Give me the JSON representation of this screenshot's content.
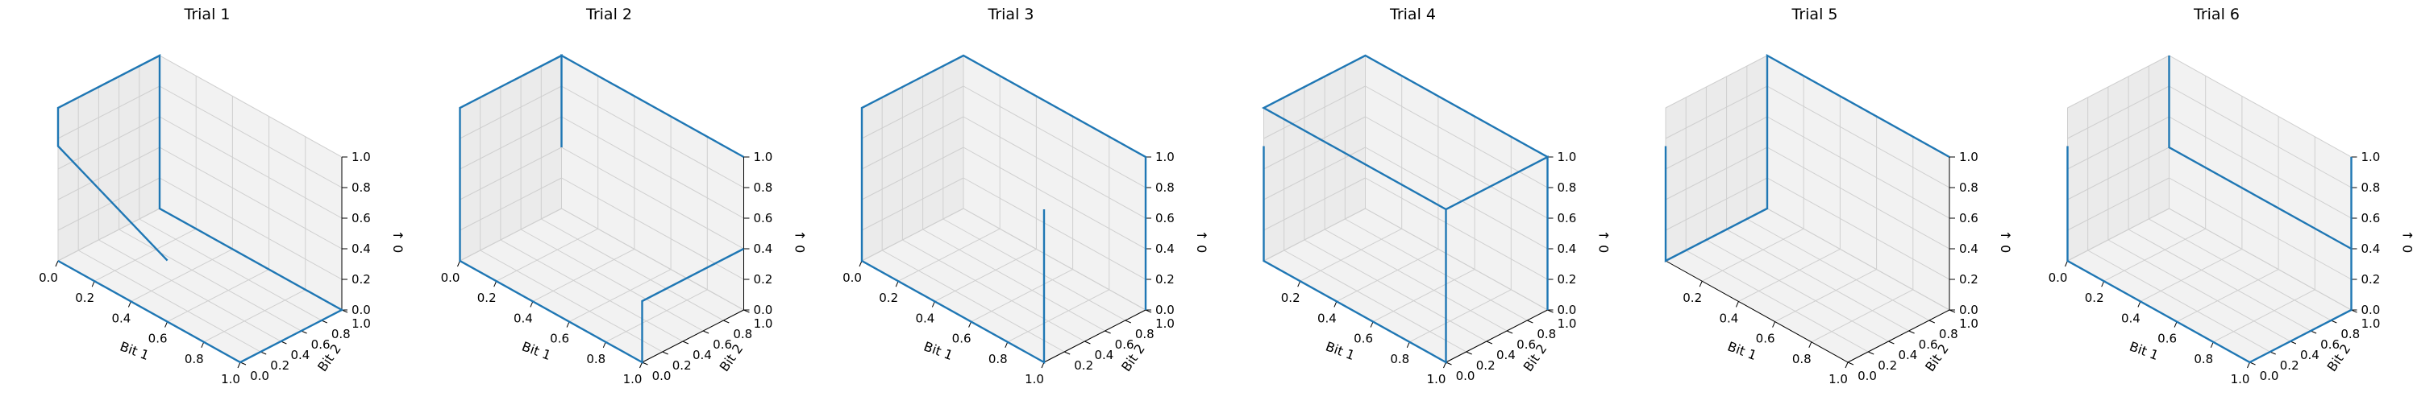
{
  "chart_data": [
    {
      "type": "line3d",
      "title": "Trial 1",
      "xlabel": "Bit 1",
      "ylabel": "Bit 2",
      "zlabel": "↑ 0",
      "xlim": [
        0,
        1
      ],
      "ylim": [
        0,
        1
      ],
      "zlim": [
        0,
        1
      ],
      "xticks": [
        "0.0",
        "0.2",
        "0.4",
        "0.6",
        "0.8",
        "1.0"
      ],
      "yticks": [
        "0.0",
        "0.2",
        "0.4",
        "0.6",
        "0.8",
        "1.0"
      ],
      "zticks": [
        "0.0",
        "0.2",
        "0.4",
        "0.6",
        "0.8",
        "1.0"
      ],
      "grid": true,
      "color": "#1f77b4",
      "x": [
        0,
        1,
        1,
        0,
        0,
        0,
        0,
        0.6
      ],
      "y": [
        0,
        0,
        1,
        1,
        1,
        0,
        0,
        0
      ],
      "z": [
        0,
        0,
        0,
        0,
        1,
        1,
        0.75,
        0.4
      ]
    },
    {
      "type": "line3d",
      "title": "Trial 2",
      "xlabel": "Bit 1",
      "ylabel": "Bit 2",
      "zlabel": "↑ 0",
      "xlim": [
        0,
        1
      ],
      "ylim": [
        0,
        1
      ],
      "zlim": [
        0,
        1
      ],
      "xticks": [
        "0.0",
        "0.2",
        "0.4",
        "0.6",
        "0.8",
        "1.0"
      ],
      "yticks": [
        "0.0",
        "0.2",
        "0.4",
        "0.6",
        "0.8",
        "1.0"
      ],
      "zticks": [
        "0.0",
        "0.2",
        "0.4",
        "0.6",
        "0.8",
        "1.0"
      ],
      "grid": true,
      "color": "#1f77b4",
      "x": [
        1,
        1,
        1,
        0,
        0,
        0,
        0,
        0,
        1,
        1
      ],
      "y": [
        1,
        0,
        0,
        0,
        0,
        1,
        1,
        1,
        1,
        1
      ],
      "z": [
        0.4,
        0.4,
        0,
        0,
        1,
        1,
        0.4,
        1,
        1,
        1
      ]
    },
    {
      "type": "line3d",
      "title": "Trial 3",
      "xlabel": "Bit 1",
      "ylabel": "Bit 2",
      "zlabel": "↑ 0",
      "xlim": [
        0,
        1
      ],
      "ylim": [
        0,
        1
      ],
      "zlim": [
        0,
        1
      ],
      "xticks": [
        "0.0",
        "0.2",
        "0.4",
        "0.6",
        "0.8",
        "1.0"
      ],
      "yticks": [
        "0.2",
        "0.4",
        "0.6",
        "0.8",
        "1.0"
      ],
      "zticks": [
        "0.0",
        "0.2",
        "0.4",
        "0.6",
        "0.8",
        "1.0"
      ],
      "grid": true,
      "color": "#1f77b4",
      "x": [
        1,
        1,
        0,
        0,
        0,
        1,
        1,
        1
      ],
      "y": [
        0,
        0,
        0,
        0,
        1,
        1,
        1,
        1
      ],
      "z": [
        1,
        0,
        0,
        1,
        1,
        1,
        1,
        0
      ]
    },
    {
      "type": "line3d",
      "title": "Trial 4",
      "xlabel": "Bit 1",
      "ylabel": "Bit 2",
      "zlabel": "↑ 0",
      "xlim": [
        0,
        1
      ],
      "ylim": [
        0,
        1
      ],
      "zlim": [
        0,
        1
      ],
      "xticks": [
        "0.2",
        "0.4",
        "0.6",
        "0.8",
        "1.0"
      ],
      "yticks": [
        "0.0",
        "0.2",
        "0.4",
        "0.6",
        "0.8",
        "1.0"
      ],
      "zticks": [
        "0.0",
        "0.2",
        "0.4",
        "0.6",
        "0.8",
        "1.0"
      ],
      "grid": true,
      "color": "#1f77b4",
      "x": [
        0,
        0,
        1,
        1,
        1,
        1,
        1,
        0,
        0,
        1
      ],
      "y": [
        0,
        0,
        0,
        0,
        1,
        1,
        1,
        1,
        0,
        0
      ],
      "z": [
        0.75,
        0,
        0,
        1,
        1,
        0,
        1,
        1,
        1,
        1
      ]
    },
    {
      "type": "line3d",
      "title": "Trial 5",
      "xlabel": "Bit 1",
      "ylabel": "Bit 2",
      "zlabel": "↑ 0",
      "xlim": [
        0,
        1
      ],
      "ylim": [
        0,
        1
      ],
      "zlim": [
        0,
        1
      ],
      "xticks": [
        "0.2",
        "0.4",
        "0.6",
        "0.8",
        "1.0"
      ],
      "yticks": [
        "0.0",
        "0.2",
        "0.4",
        "0.6",
        "0.8",
        "1.0"
      ],
      "zticks": [
        "0.0",
        "0.2",
        "0.4",
        "0.6",
        "0.8",
        "1.0"
      ],
      "grid": true,
      "color": "#1f77b4",
      "x": [
        0,
        0,
        0,
        0,
        1
      ],
      "y": [
        0,
        0,
        1,
        1,
        1
      ],
      "z": [
        0.75,
        0,
        0,
        1,
        1
      ]
    },
    {
      "type": "line3d",
      "title": "Trial 6",
      "xlabel": "Bit 1",
      "ylabel": "Bit 2",
      "zlabel": "↑ 0",
      "xlim": [
        0,
        1
      ],
      "ylim": [
        0,
        1
      ],
      "zlim": [
        0,
        1
      ],
      "xticks": [
        "0.0",
        "0.2",
        "0.4",
        "0.6",
        "0.8",
        "1.0"
      ],
      "yticks": [
        "0.0",
        "0.2",
        "0.4",
        "0.6",
        "0.8",
        "1.0"
      ],
      "zticks": [
        "0.0",
        "0.2",
        "0.4",
        "0.6",
        "0.8",
        "1.0"
      ],
      "grid": true,
      "color": "#1f77b4",
      "x": [
        0,
        0,
        1,
        1,
        1,
        1,
        0,
        0
      ],
      "y": [
        0,
        0,
        0,
        1,
        1,
        1,
        1,
        1
      ],
      "z": [
        0.75,
        0,
        0,
        0,
        1,
        0.4,
        0.4,
        1
      ]
    }
  ]
}
